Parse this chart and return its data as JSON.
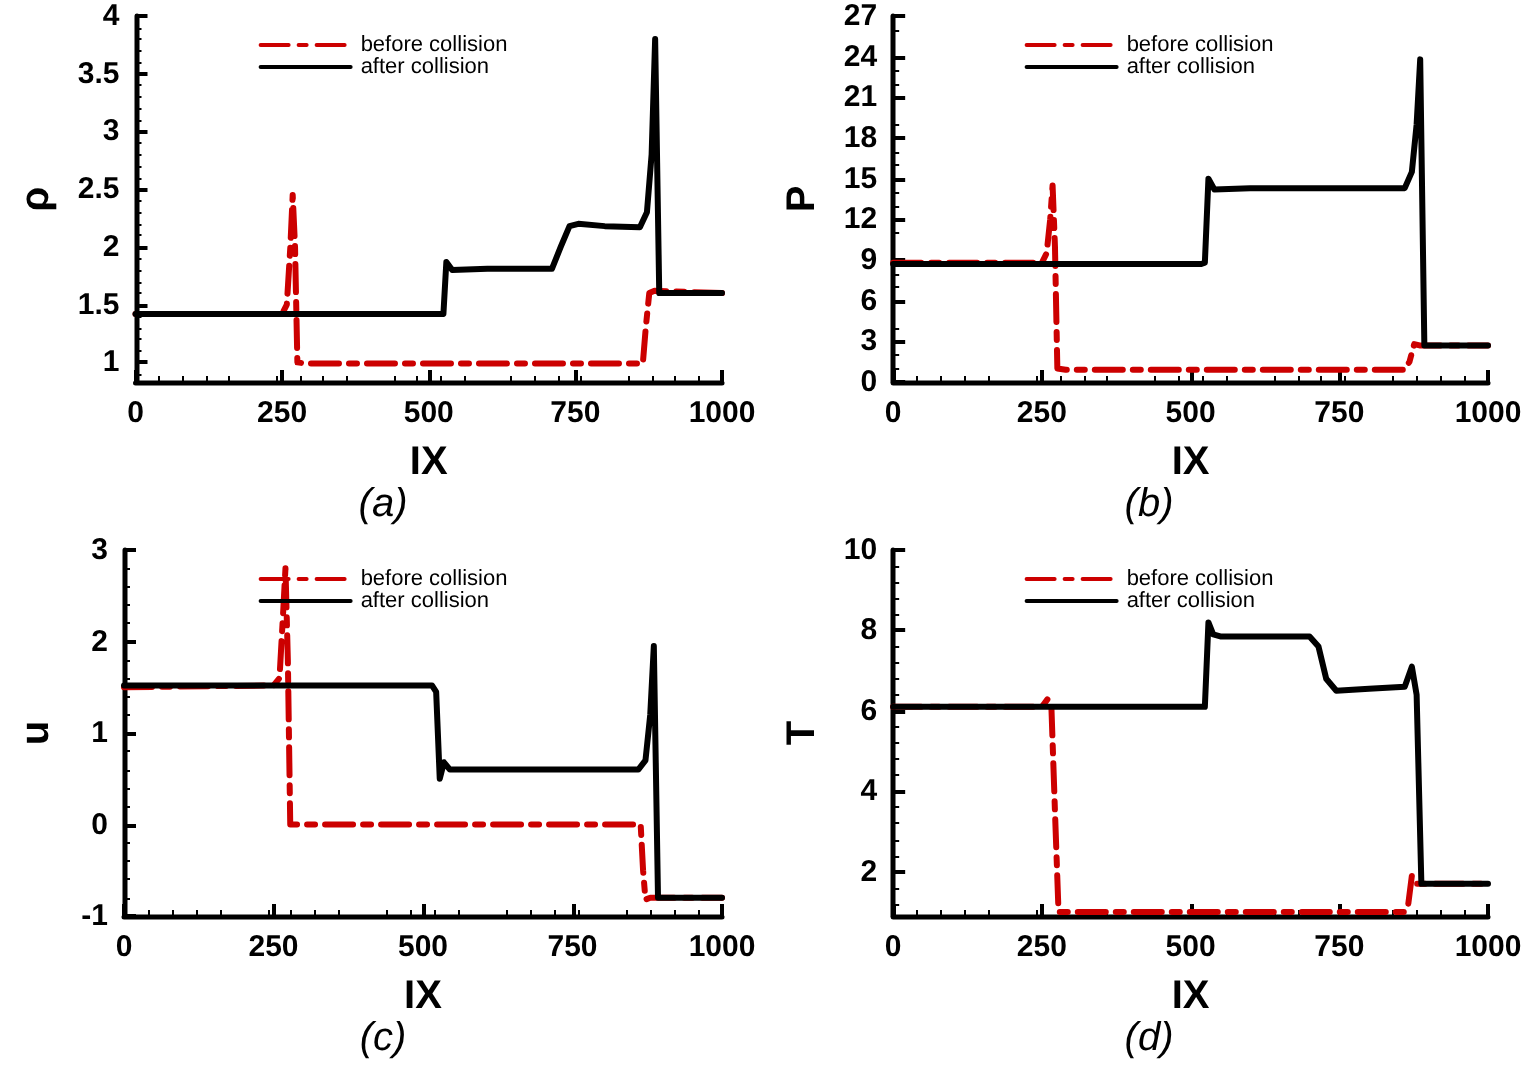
{
  "chart_data": [
    {
      "type": "line",
      "title": "(a)",
      "xlabel": "IX",
      "ylabel": "ρ",
      "xlim": [
        0,
        1000
      ],
      "xticks": [
        0,
        250,
        500,
        750,
        1000
      ],
      "ylim": [
        0.83,
        4
      ],
      "yticks": [
        1,
        1.5,
        2,
        2.5,
        3,
        3.5,
        4
      ],
      "grid": false,
      "legend": "top",
      "marker": "none",
      "series": [
        {
          "name": "before collision",
          "color": "#cc0000",
          "line_style": "dashed",
          "x": [
            0,
            250,
            258,
            264,
            268,
            272,
            276,
            290,
            500,
            865,
            870,
            876,
            885,
            1000
          ],
          "values": [
            1.42,
            1.42,
            1.5,
            2.0,
            2.45,
            2.0,
            1.0,
            0.99,
            0.99,
            0.99,
            1.3,
            1.6,
            1.62,
            1.6
          ]
        },
        {
          "name": "after collision",
          "color": "#000000",
          "line_style": "solid",
          "x": [
            0,
            520,
            525,
            530,
            540,
            600,
            710,
            725,
            740,
            755,
            800,
            860,
            872,
            880,
            886,
            893,
            1000
          ],
          "values": [
            1.42,
            1.42,
            1.42,
            1.87,
            1.8,
            1.81,
            1.81,
            2.0,
            2.18,
            2.2,
            2.18,
            2.17,
            2.3,
            2.8,
            3.8,
            1.6,
            1.6
          ]
        }
      ]
    },
    {
      "type": "line",
      "title": "(b)",
      "xlabel": "IX",
      "ylabel": "P",
      "xlim": [
        0,
        1000
      ],
      "xticks": [
        0,
        250,
        500,
        750,
        1000
      ],
      "ylim": [
        0,
        27
      ],
      "yticks": [
        0,
        3,
        6,
        9,
        12,
        15,
        18,
        21,
        24,
        27
      ],
      "grid": false,
      "legend": "top",
      "marker": "none",
      "series": [
        {
          "name": "before collision",
          "color": "#cc0000",
          "line_style": "dashed",
          "x": [
            0,
            250,
            258,
            264,
            268,
            272,
            276,
            290,
            500,
            860,
            868,
            876,
            885,
            1000
          ],
          "values": [
            8.8,
            8.8,
            9.5,
            12,
            14.5,
            10,
            1.0,
            0.9,
            0.9,
            0.9,
            1.5,
            2.8,
            2.7,
            2.7
          ]
        },
        {
          "name": "after collision",
          "color": "#000000",
          "line_style": "solid",
          "x": [
            0,
            518,
            524,
            530,
            540,
            600,
            860,
            872,
            880,
            886,
            893,
            1000
          ],
          "values": [
            8.7,
            8.7,
            8.8,
            15,
            14.2,
            14.3,
            14.3,
            15.5,
            19,
            23.8,
            2.7,
            2.7
          ]
        }
      ]
    },
    {
      "type": "line",
      "title": "(c)",
      "xlabel": "IX",
      "ylabel": "u",
      "xlim": [
        0,
        1000
      ],
      "xticks": [
        0,
        250,
        500,
        750,
        1000
      ],
      "ylim": [
        -1,
        3
      ],
      "yticks": [
        -1,
        0,
        1,
        2,
        3
      ],
      "grid": false,
      "legend": "top",
      "marker": "none",
      "series": [
        {
          "name": "before collision",
          "color": "#cc0000",
          "line_style": "dashed",
          "x": [
            0,
            250,
            260,
            266,
            270,
            274,
            278,
            290,
            500,
            864,
            868,
            872,
            880,
            1000
          ],
          "values": [
            1.5,
            1.52,
            1.6,
            2.3,
            2.8,
            1.8,
            0.0,
            0.0,
            0.0,
            0.0,
            -0.5,
            -0.82,
            -0.8,
            -0.8
          ]
        },
        {
          "name": "after collision",
          "color": "#000000",
          "line_style": "solid",
          "x": [
            0,
            515,
            522,
            528,
            535,
            545,
            600,
            860,
            872,
            880,
            886,
            893,
            1000
          ],
          "values": [
            1.52,
            1.52,
            1.45,
            0.5,
            0.68,
            0.6,
            0.6,
            0.6,
            0.7,
            1.2,
            1.95,
            -0.8,
            -0.8
          ]
        }
      ]
    },
    {
      "type": "line",
      "title": "(d)",
      "xlabel": "IX",
      "ylabel": "T",
      "xlim": [
        0,
        1000
      ],
      "xticks": [
        0,
        250,
        500,
        750,
        1000
      ],
      "ylim": [
        0.9,
        10
      ],
      "yticks": [
        2,
        4,
        6,
        8,
        10
      ],
      "grid": false,
      "legend": "top",
      "marker": "none",
      "series": [
        {
          "name": "before collision",
          "color": "#cc0000",
          "line_style": "dashed",
          "x": [
            0,
            250,
            260,
            266,
            272,
            278,
            290,
            500,
            860,
            866,
            872,
            880,
            1000
          ],
          "values": [
            6.1,
            6.1,
            6.3,
            6.1,
            3.5,
            1.0,
            1.0,
            1.0,
            1.0,
            1.2,
            1.9,
            1.7,
            1.7
          ]
        },
        {
          "name": "after collision",
          "color": "#000000",
          "line_style": "solid",
          "x": [
            0,
            515,
            524,
            530,
            538,
            550,
            600,
            700,
            715,
            728,
            745,
            800,
            860,
            872,
            880,
            888,
            1000
          ],
          "values": [
            6.1,
            6.1,
            6.1,
            8.2,
            7.9,
            7.85,
            7.85,
            7.85,
            7.6,
            6.8,
            6.5,
            6.55,
            6.6,
            7.1,
            6.4,
            1.7,
            1.7
          ]
        }
      ]
    }
  ]
}
